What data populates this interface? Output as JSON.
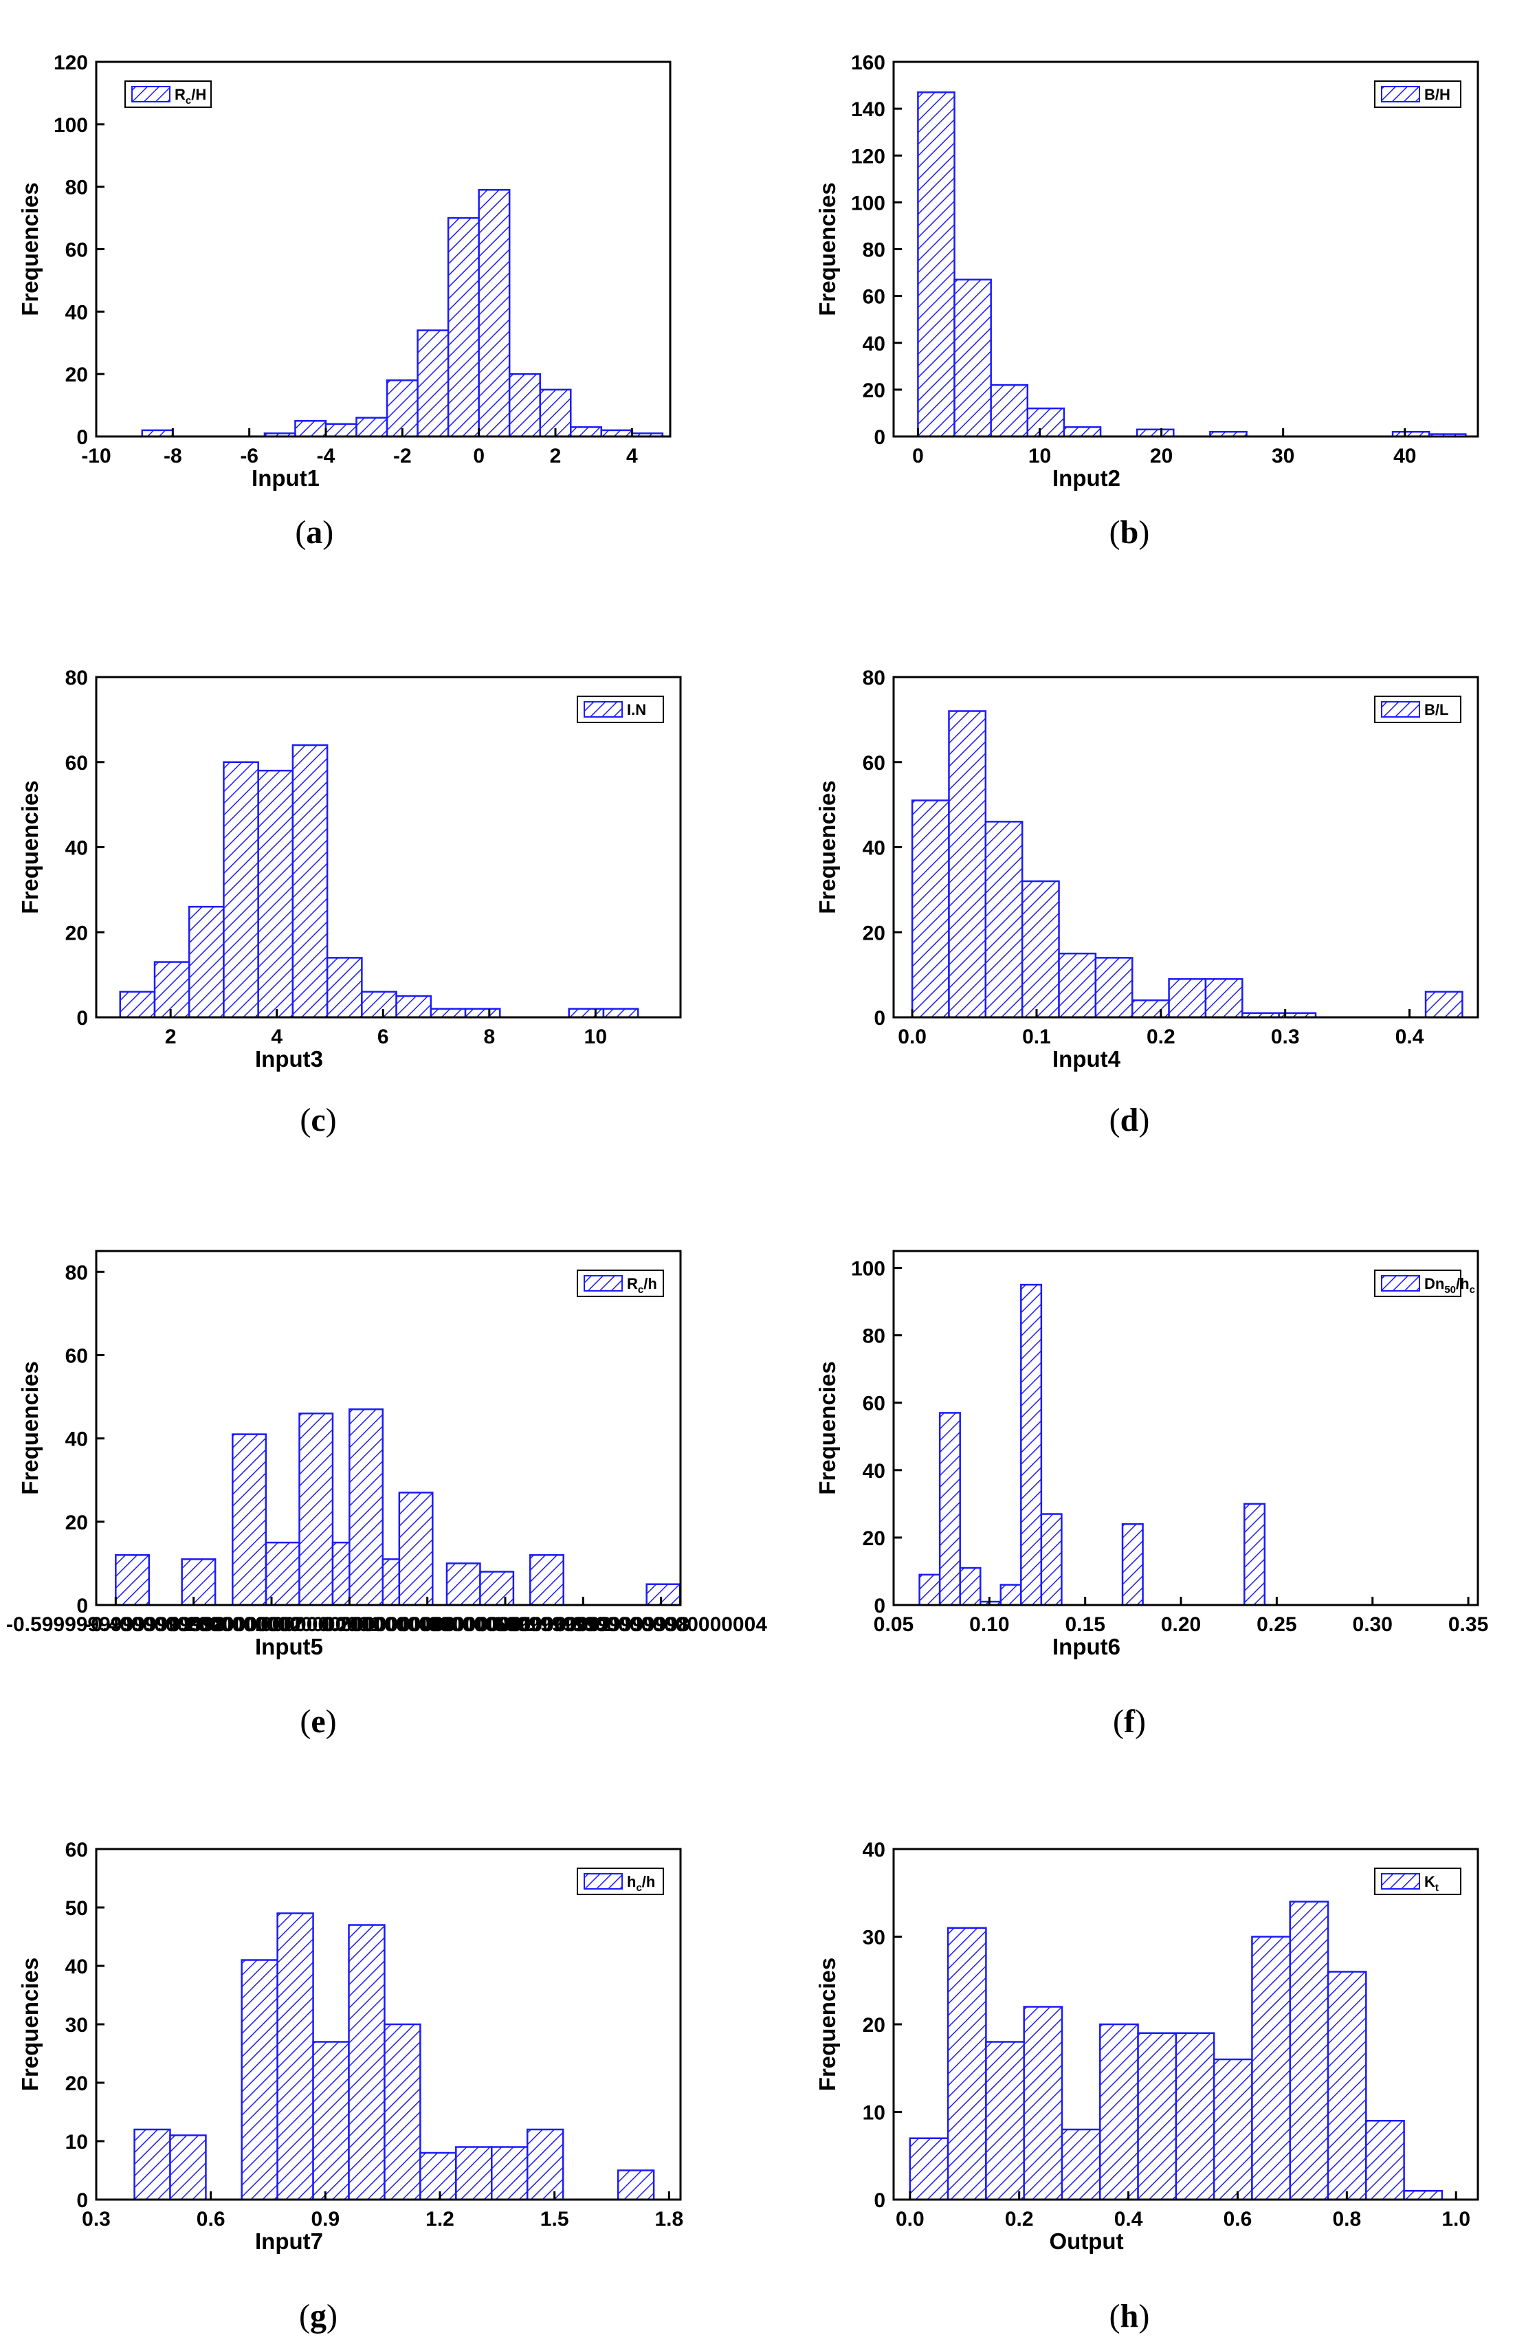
{
  "figure": {
    "bar_color": "#1a1aff",
    "axis_color": "#000000"
  },
  "chart_data": [
    {
      "id": "a",
      "type": "bar",
      "caption": "a",
      "xlabel": "Input1",
      "ylabel": "Frequencies",
      "legend": {
        "main": "R",
        "sub": "c",
        "rest": "/H",
        "position": "top-left"
      },
      "xlim": [
        -10,
        5
      ],
      "ylim": [
        0,
        120
      ],
      "xticks": [
        -10,
        -8,
        -6,
        -4,
        -2,
        0,
        2,
        4
      ],
      "yticks": [
        0,
        20,
        40,
        60,
        80,
        100,
        120
      ],
      "bin_width": 0.8,
      "bins": [
        [
          -8.8,
          2
        ],
        [
          -5.6,
          1
        ],
        [
          -4.8,
          5
        ],
        [
          -4.0,
          4
        ],
        [
          -3.2,
          6
        ],
        [
          -2.4,
          18
        ],
        [
          -1.6,
          34
        ],
        [
          -0.8,
          70
        ],
        [
          0.0,
          79
        ],
        [
          0.8,
          20
        ],
        [
          1.6,
          15
        ],
        [
          2.4,
          3
        ],
        [
          3.2,
          2
        ],
        [
          4.0,
          1
        ]
      ]
    },
    {
      "id": "b",
      "type": "bar",
      "caption": "b",
      "xlabel": "Input2",
      "ylabel": "Frequencies",
      "legend": {
        "main": "B/H",
        "sub": "",
        "rest": "",
        "position": "top-right"
      },
      "xlim": [
        -2,
        46
      ],
      "ylim": [
        0,
        160
      ],
      "xticks": [
        0,
        10,
        20,
        30,
        40
      ],
      "yticks": [
        0,
        20,
        40,
        60,
        80,
        100,
        120,
        140,
        160
      ],
      "bin_width": 3,
      "bins": [
        [
          0,
          147
        ],
        [
          3,
          67
        ],
        [
          6,
          22
        ],
        [
          9,
          12
        ],
        [
          12,
          4
        ],
        [
          18,
          3
        ],
        [
          24,
          2
        ],
        [
          39,
          2
        ],
        [
          42,
          1
        ]
      ]
    },
    {
      "id": "c",
      "type": "bar",
      "caption": "c",
      "xlabel": "Input3",
      "ylabel": "Frequencies",
      "legend": {
        "main": "I.N",
        "sub": "",
        "rest": "",
        "position": "top-right"
      },
      "xlim": [
        0.6,
        11.6
      ],
      "ylim": [
        0,
        80
      ],
      "xticks": [
        2,
        4,
        6,
        8,
        10
      ],
      "yticks": [
        0,
        20,
        40,
        60,
        80
      ],
      "bin_width": 0.65,
      "bins": [
        [
          1.05,
          6
        ],
        [
          1.7,
          13
        ],
        [
          2.35,
          26
        ],
        [
          3.0,
          60
        ],
        [
          3.65,
          58
        ],
        [
          4.3,
          64
        ],
        [
          4.95,
          14
        ],
        [
          5.6,
          6
        ],
        [
          6.25,
          5
        ],
        [
          6.9,
          2
        ],
        [
          7.55,
          2
        ],
        [
          9.5,
          2
        ],
        [
          10.15,
          2
        ]
      ]
    },
    {
      "id": "d",
      "type": "bar",
      "caption": "d",
      "xlabel": "Input4",
      "ylabel": "Frequencies",
      "legend": {
        "main": "B/L",
        "sub": "",
        "rest": "",
        "position": "top-right"
      },
      "xlim": [
        -0.015,
        0.455
      ],
      "ylim": [
        0,
        80
      ],
      "xticks": [
        0.0,
        0.1,
        0.2,
        0.3,
        0.4
      ],
      "yticks": [
        0,
        20,
        40,
        60,
        80
      ],
      "bin_width": 0.0295,
      "bins": [
        [
          0.0,
          51
        ],
        [
          0.0295,
          72
        ],
        [
          0.059,
          46
        ],
        [
          0.0885,
          32
        ],
        [
          0.118,
          15
        ],
        [
          0.1475,
          14
        ],
        [
          0.177,
          4
        ],
        [
          0.2065,
          9
        ],
        [
          0.236,
          9
        ],
        [
          0.2655,
          1
        ],
        [
          0.295,
          1
        ],
        [
          0.413,
          6
        ]
      ]
    },
    {
      "id": "e",
      "type": "bar",
      "caption": "e",
      "xlabel": "Input5",
      "ylabel": "Frequencies",
      "legend": {
        "main": "R",
        "sub": "c",
        "rest": "/h",
        "position": "top-right"
      },
      "xlim": [
        -0.65,
        0.85
      ],
      "ylim": [
        0,
        85
      ],
      "xticks": [
        -0.6,
        -0.4,
        -0.2,
        0.0,
        0.2,
        0.4,
        0.6,
        0.8
      ],
      "yticks": [
        0,
        20,
        40,
        60,
        80
      ],
      "bin_width": 0.0855,
      "bins": [
        [
          -0.6,
          12
        ],
        [
          -0.43,
          11
        ],
        [
          -0.3,
          41
        ],
        [
          -0.214,
          15
        ],
        [
          -0.1285,
          46
        ],
        [
          -0.043,
          15
        ],
        [
          0.0425,
          11
        ],
        [
          0.128,
          27
        ],
        [
          0.0,
          47
        ],
        [
          0.25,
          10
        ],
        [
          0.3355,
          8
        ],
        [
          0.464,
          12
        ],
        [
          0.763,
          5
        ]
      ]
    },
    {
      "id": "f",
      "type": "bar",
      "caption": "f",
      "xlabel": "Input6",
      "ylabel": "Frequencies",
      "legend": {
        "main": "Dn",
        "sub": "50",
        "rest": "/h",
        "sub2": "c",
        "position": "top-right"
      },
      "xlim": [
        0.05,
        0.355
      ],
      "ylim": [
        0,
        105
      ],
      "xticks": [
        0.05,
        0.1,
        0.15,
        0.2,
        0.25,
        0.3,
        0.35
      ],
      "yticks": [
        0,
        20,
        40,
        60,
        80,
        100
      ],
      "bin_width": 0.0106,
      "bins": [
        [
          0.0635,
          9
        ],
        [
          0.0741,
          57
        ],
        [
          0.0847,
          11
        ],
        [
          0.0953,
          1
        ],
        [
          0.1059,
          6
        ],
        [
          0.1165,
          95
        ],
        [
          0.1271,
          27
        ],
        [
          0.1695,
          24
        ],
        [
          0.2331,
          30
        ]
      ]
    },
    {
      "id": "g",
      "type": "bar",
      "caption": "g",
      "xlabel": "Input7",
      "ylabel": "Frequencies",
      "legend": {
        "main": "h",
        "sub": "c",
        "rest": "/h",
        "position": "top-right"
      },
      "xlim": [
        0.3,
        1.83
      ],
      "ylim": [
        0,
        60
      ],
      "xticks": [
        0.3,
        0.6,
        0.9,
        1.2,
        1.5,
        1.8
      ],
      "yticks": [
        0,
        10,
        20,
        30,
        40,
        50,
        60
      ],
      "bin_width": 0.0935,
      "bins": [
        [
          0.4,
          12
        ],
        [
          0.4935,
          11
        ],
        [
          0.681,
          41
        ],
        [
          0.7745,
          49
        ],
        [
          0.868,
          27
        ],
        [
          0.9615,
          47
        ],
        [
          1.055,
          30
        ],
        [
          1.1485,
          8
        ],
        [
          1.242,
          9
        ],
        [
          1.3355,
          9
        ],
        [
          1.429,
          12
        ],
        [
          1.6665,
          5
        ]
      ]
    },
    {
      "id": "h",
      "type": "bar",
      "caption": "h",
      "xlabel": "Output",
      "ylabel": "Frequencies",
      "legend": {
        "main": "K",
        "sub": "t",
        "rest": "",
        "position": "top-right"
      },
      "xlim": [
        -0.03,
        1.04
      ],
      "ylim": [
        0,
        40
      ],
      "xticks": [
        0.0,
        0.2,
        0.4,
        0.6,
        0.8,
        1.0
      ],
      "yticks": [
        0,
        10,
        20,
        30,
        40
      ],
      "bin_width": 0.0696,
      "bins": [
        [
          0.0,
          7
        ],
        [
          0.0696,
          31
        ],
        [
          0.1392,
          18
        ],
        [
          0.2088,
          22
        ],
        [
          0.2784,
          8
        ],
        [
          0.348,
          20
        ],
        [
          0.4176,
          19
        ],
        [
          0.4872,
          19
        ],
        [
          0.5568,
          16
        ],
        [
          0.6264,
          30
        ],
        [
          0.696,
          34
        ],
        [
          0.7656,
          26
        ],
        [
          0.8352,
          9
        ],
        [
          0.9048,
          1
        ]
      ]
    }
  ]
}
